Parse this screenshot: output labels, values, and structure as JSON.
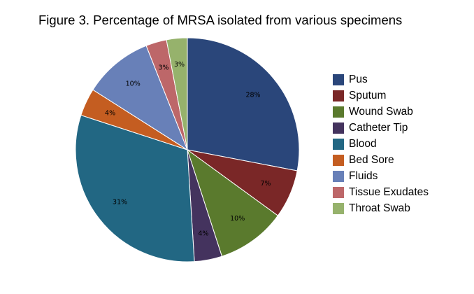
{
  "chart_data": {
    "type": "pie",
    "title": "Figure 3. Percentage of MRSA isolated from various specimens",
    "legend_position": "right",
    "slices": [
      {
        "name": "Pus",
        "value": 28,
        "label": "28%",
        "color": "#2A467A"
      },
      {
        "name": "Sputum",
        "value": 7,
        "label": "7%",
        "color": "#7A2727"
      },
      {
        "name": "Wound Swab",
        "value": 10,
        "label": "10%",
        "color": "#5A7A2D"
      },
      {
        "name": "Catheter Tip",
        "value": 4,
        "label": "4%",
        "color": "#44335E"
      },
      {
        "name": "Blood",
        "value": 31,
        "label": "31%",
        "color": "#226783"
      },
      {
        "name": "Bed Sore",
        "value": 4,
        "label": "4%",
        "color": "#C45D21"
      },
      {
        "name": "Fluids",
        "value": 10,
        "label": "10%",
        "color": "#6880B8"
      },
      {
        "name": "Tissue Exudates",
        "value": 3,
        "label": "3%",
        "color": "#BD6769"
      },
      {
        "name": "Throat Swab",
        "value": 3,
        "label": "3%",
        "color": "#96B26C"
      }
    ]
  }
}
